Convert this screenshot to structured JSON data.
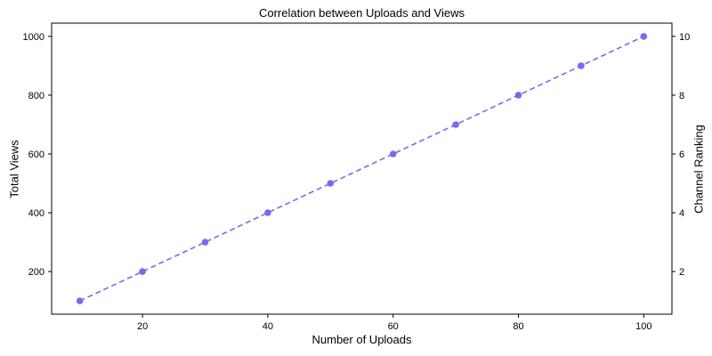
{
  "chart_data": {
    "type": "line",
    "title": "Correlation between Uploads and Views",
    "xlabel": "Number of Uploads",
    "ylabel": "Total Views",
    "ylabel_right": "Channel Ranking",
    "x": [
      10,
      20,
      30,
      40,
      50,
      60,
      70,
      80,
      90,
      100
    ],
    "series": [
      {
        "name": "Total Views",
        "values": [
          100,
          200,
          300,
          400,
          500,
          600,
          700,
          800,
          900,
          1000
        ]
      }
    ],
    "right_axis_values": [
      1,
      2,
      3,
      4,
      5,
      6,
      7,
      8,
      9,
      10
    ],
    "xticks": [
      20,
      40,
      60,
      80,
      100
    ],
    "yticks": [
      200,
      400,
      600,
      800,
      1000
    ],
    "yticks_right": [
      2,
      4,
      6,
      8,
      10
    ],
    "xlim": [
      5.5,
      104.5
    ],
    "ylim": [
      55,
      1045
    ],
    "ylim_right": [
      0.55,
      10.45
    ],
    "line_color": "#7B68EE",
    "line_style": "dashed",
    "marker": "circle",
    "grid": false,
    "legend": "none",
    "spine_color": "#000000",
    "background_color": "#ffffff"
  }
}
